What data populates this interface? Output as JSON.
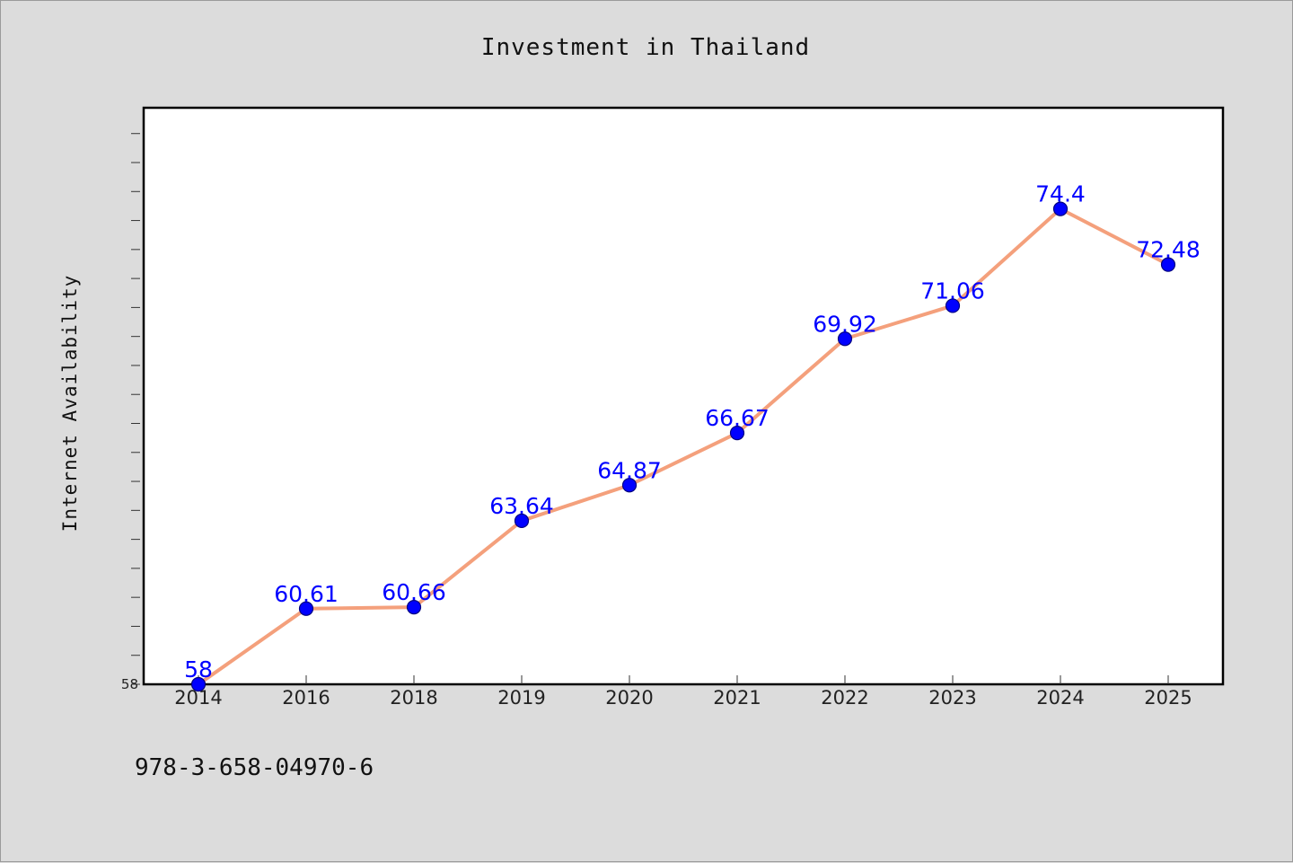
{
  "chart_data": {
    "type": "line",
    "title": "Investment in Thailand",
    "xlabel": "",
    "ylabel": "Internet Availability",
    "categories": [
      "2014",
      "2016",
      "2018",
      "2019",
      "2020",
      "2021",
      "2022",
      "2023",
      "2024",
      "2025"
    ],
    "series": [
      {
        "values": [
          58,
          60.61,
          60.66,
          63.64,
          64.87,
          66.67,
          69.92,
          71.06,
          74.4,
          72.48
        ],
        "labels": [
          "58",
          "60.61",
          "60.66",
          "63.64",
          "64.87",
          "66.67",
          "69.92",
          "71.06",
          "74.4",
          "72.48"
        ]
      }
    ],
    "ylim": [
      58,
      77.89
    ],
    "ytick_labels": [
      "58"
    ],
    "grid": false,
    "legend": "none",
    "colors": {
      "line": "#f4a07c",
      "marker": "#0000ff",
      "marker_edge": "#000080",
      "data_label": "#0000ff",
      "background": "#dcdcdc",
      "plot_background": "#ffffff"
    }
  },
  "footer": {
    "isbn": "978-3-658-04970-6"
  }
}
